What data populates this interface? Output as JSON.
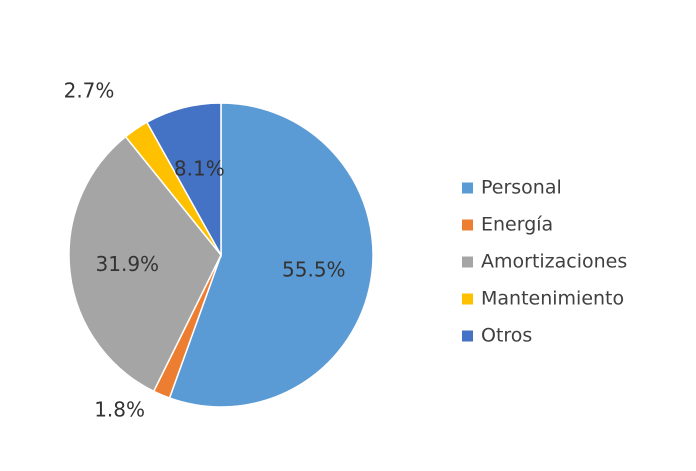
{
  "chart_data": {
    "type": "pie",
    "title": "",
    "legend_position": "right",
    "unit": "%",
    "slices": [
      {
        "label": "Personal",
        "value": 55.5,
        "display": "55.5%",
        "color": "#5B9BD5"
      },
      {
        "label": "Energía",
        "value": 1.8,
        "display": "1.8%",
        "color": "#ED7D31"
      },
      {
        "label": "Amortizaciones",
        "value": 31.9,
        "display": "31.9%",
        "color": "#A5A5A5"
      },
      {
        "label": "Mantenimiento",
        "value": 2.7,
        "display": "2.7%",
        "color": "#FFC000"
      },
      {
        "label": "Otros",
        "value": 8.1,
        "display": "8.1%",
        "color": "#4472C4"
      }
    ]
  }
}
